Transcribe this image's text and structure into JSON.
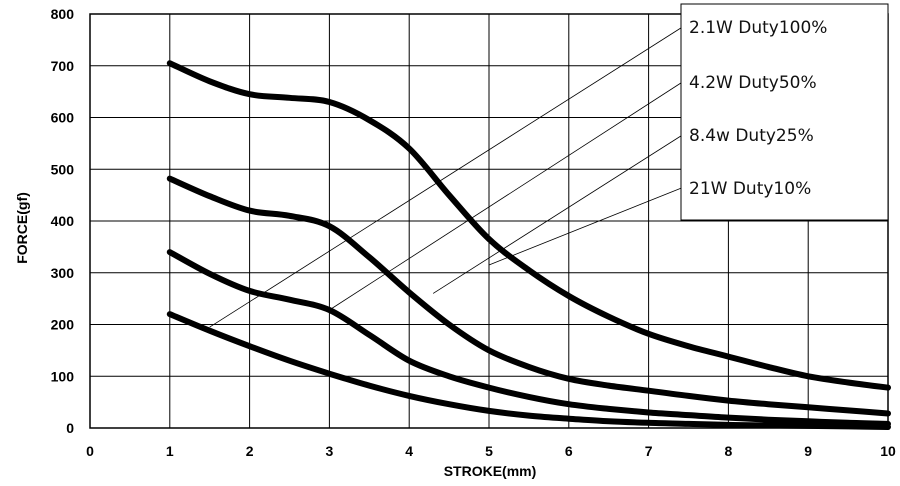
{
  "chart_data": {
    "type": "line",
    "xlabel": "STROKE(mm)",
    "ylabel": "FORCE(gf)",
    "xlim": [
      0,
      10
    ],
    "ylim": [
      0,
      800
    ],
    "xticks": [
      "0",
      "1",
      "2",
      "3",
      "4",
      "5",
      "6",
      "7",
      "8",
      "9",
      "10"
    ],
    "yticks": [
      "0",
      "100",
      "200",
      "300",
      "400",
      "500",
      "600",
      "700",
      "800"
    ],
    "grid": true,
    "legend_position": "top-right",
    "series": [
      {
        "name": "2.1W Duty100%",
        "points": [
          [
            1,
            705
          ],
          [
            1.5,
            670
          ],
          [
            2,
            645
          ],
          [
            2.5,
            638
          ],
          [
            3,
            630
          ],
          [
            3.5,
            595
          ],
          [
            4,
            540
          ],
          [
            4.5,
            450
          ],
          [
            5,
            365
          ],
          [
            5.5,
            305
          ],
          [
            6,
            255
          ],
          [
            6.5,
            215
          ],
          [
            7,
            182
          ],
          [
            7.5,
            158
          ],
          [
            8,
            138
          ],
          [
            8.5,
            118
          ],
          [
            9,
            100
          ],
          [
            9.5,
            88
          ],
          [
            10,
            78
          ]
        ]
      },
      {
        "name": "4.2W Duty50%",
        "points": [
          [
            1,
            482
          ],
          [
            1.5,
            448
          ],
          [
            2,
            420
          ],
          [
            2.5,
            410
          ],
          [
            3,
            390
          ],
          [
            3.5,
            330
          ],
          [
            4,
            262
          ],
          [
            4.5,
            200
          ],
          [
            5,
            150
          ],
          [
            5.5,
            118
          ],
          [
            6,
            95
          ],
          [
            6.5,
            82
          ],
          [
            7,
            72
          ],
          [
            7.5,
            62
          ],
          [
            8,
            53
          ],
          [
            8.5,
            46
          ],
          [
            9,
            40
          ],
          [
            9.5,
            34
          ],
          [
            10,
            28
          ]
        ]
      },
      {
        "name": "8.4w  Duty25%",
        "points": [
          [
            1,
            340
          ],
          [
            1.5,
            298
          ],
          [
            2,
            265
          ],
          [
            2.5,
            248
          ],
          [
            3,
            228
          ],
          [
            3.5,
            180
          ],
          [
            4,
            130
          ],
          [
            4.5,
            100
          ],
          [
            5,
            78
          ],
          [
            5.5,
            60
          ],
          [
            6,
            46
          ],
          [
            6.5,
            37
          ],
          [
            7,
            30
          ],
          [
            7.5,
            25
          ],
          [
            8,
            20
          ],
          [
            8.5,
            16
          ],
          [
            9,
            13
          ],
          [
            9.5,
            10
          ],
          [
            10,
            8
          ]
        ]
      },
      {
        "name": "21W  Duty10%",
        "points": [
          [
            1,
            220
          ],
          [
            1.5,
            188
          ],
          [
            2,
            158
          ],
          [
            2.5,
            130
          ],
          [
            3,
            105
          ],
          [
            3.5,
            82
          ],
          [
            4,
            62
          ],
          [
            4.5,
            46
          ],
          [
            5,
            33
          ],
          [
            5.5,
            24
          ],
          [
            6,
            18
          ],
          [
            6.5,
            13
          ],
          [
            7,
            10
          ],
          [
            7.5,
            8
          ],
          [
            8,
            6
          ],
          [
            8.5,
            5
          ],
          [
            9,
            4
          ],
          [
            9.5,
            3
          ],
          [
            10,
            2
          ]
        ]
      }
    ],
    "leaders": [
      {
        "series": 0,
        "to": [
          1.5,
          195
        ]
      },
      {
        "series": 1,
        "to": [
          3.0,
          228
        ]
      },
      {
        "series": 2,
        "to": [
          4.3,
          260
        ]
      },
      {
        "series": 3,
        "to": [
          5.0,
          315
        ]
      }
    ]
  }
}
